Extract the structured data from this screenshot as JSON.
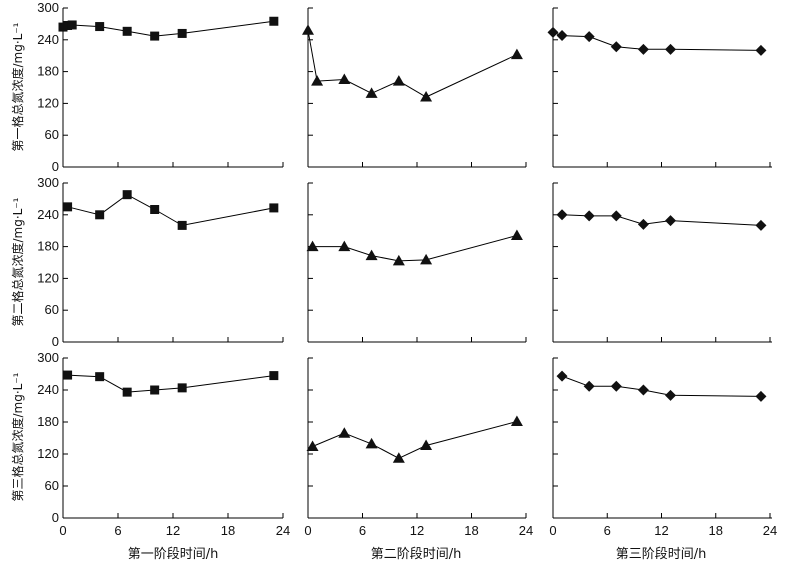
{
  "chart_data": {
    "type": "scatter",
    "panel_layout": {
      "rows": 3,
      "cols": 3
    },
    "xlim": [
      0,
      24
    ],
    "ylim": [
      0,
      300
    ],
    "xticks": [
      0,
      6,
      12,
      18,
      24
    ],
    "yticks": [
      0,
      60,
      120,
      180,
      240,
      300
    ],
    "column_xlabels": [
      "第一阶段时间/h",
      "第二阶段时间/h",
      "第三阶段时间/h"
    ],
    "row_ylabels": [
      "第一格总氮浓度/mg·L⁻¹",
      "第二格总氮浓度/mg·L⁻¹",
      "第三格总氮浓度/mg·L⁻¹"
    ],
    "column_markers": [
      "square",
      "triangle",
      "diamond"
    ],
    "grid": false,
    "panels": [
      {
        "row": 0,
        "col": 0,
        "x": [
          0,
          0.5,
          1,
          4,
          7,
          10,
          13,
          23
        ],
        "y": [
          264,
          267,
          268,
          265,
          256,
          247,
          252,
          275
        ]
      },
      {
        "row": 0,
        "col": 1,
        "x": [
          0,
          1,
          4,
          7,
          10,
          13,
          23
        ],
        "y": [
          258,
          162,
          165,
          139,
          162,
          132,
          212
        ]
      },
      {
        "row": 0,
        "col": 2,
        "x": [
          0,
          1,
          4,
          7,
          10,
          13,
          23
        ],
        "y": [
          254,
          248,
          246,
          227,
          222,
          222,
          220
        ]
      },
      {
        "row": 1,
        "col": 0,
        "x": [
          0.5,
          4,
          7,
          10,
          13,
          23
        ],
        "y": [
          255,
          240,
          278,
          250,
          220,
          253
        ]
      },
      {
        "row": 1,
        "col": 1,
        "x": [
          0.5,
          4,
          7,
          10,
          13,
          23
        ],
        "y": [
          180,
          180,
          163,
          153,
          155,
          201
        ]
      },
      {
        "row": 1,
        "col": 2,
        "x": [
          1,
          4,
          7,
          10,
          13,
          23
        ],
        "y": [
          240,
          238,
          238,
          222,
          229,
          220
        ]
      },
      {
        "row": 2,
        "col": 0,
        "x": [
          0.5,
          4,
          7,
          10,
          13,
          23
        ],
        "y": [
          268,
          265,
          236,
          240,
          244,
          267
        ]
      },
      {
        "row": 2,
        "col": 1,
        "x": [
          0.5,
          4,
          7,
          10,
          13,
          23
        ],
        "y": [
          134,
          159,
          139,
          112,
          136,
          181
        ]
      },
      {
        "row": 2,
        "col": 2,
        "x": [
          1,
          4,
          7,
          10,
          13,
          23
        ],
        "y": [
          266,
          247,
          247,
          240,
          230,
          228
        ]
      }
    ]
  }
}
